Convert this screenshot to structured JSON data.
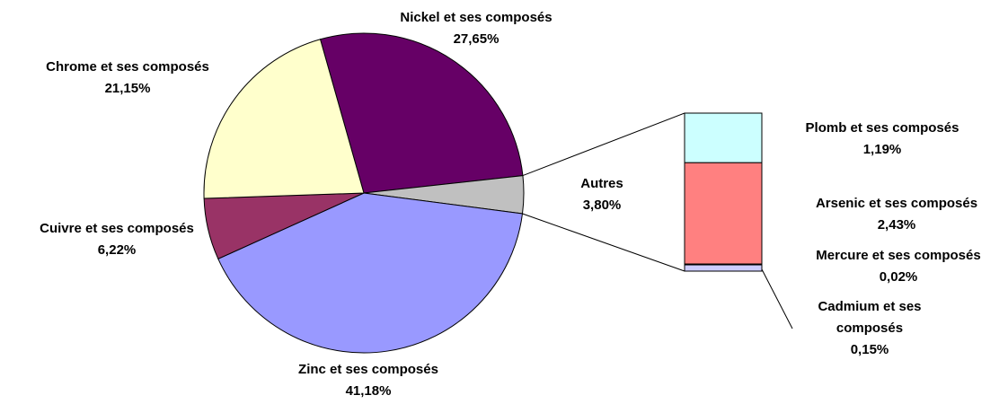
{
  "chart_data": {
    "type": "pie-of-bar",
    "pie": {
      "categories": [
        "Nickel et ses composés",
        "Autres",
        "Zinc et ses composés",
        "Cuivre et ses composés",
        "Chrome et ses composés"
      ],
      "values": [
        27.65,
        3.8,
        41.18,
        6.22,
        21.15
      ],
      "value_labels": [
        "27,65%",
        "3,80%",
        "41,18%",
        "6,22%",
        "21,15%"
      ],
      "colors": [
        "#660066",
        "#c0c0c0",
        "#9999ff",
        "#993366",
        "#ffffcc"
      ]
    },
    "bar": {
      "categories": [
        "Plomb et ses composés",
        "Arsenic et ses composés",
        "Mercure et ses composés",
        "Cadmium et ses composés"
      ],
      "values": [
        1.19,
        2.43,
        0.02,
        0.15
      ],
      "value_labels": [
        "1,19%",
        "2,43%",
        "0,02%",
        "0,15%"
      ],
      "colors": [
        "#ccffff",
        "#ff8080",
        "#800000",
        "#ccccff"
      ]
    }
  }
}
